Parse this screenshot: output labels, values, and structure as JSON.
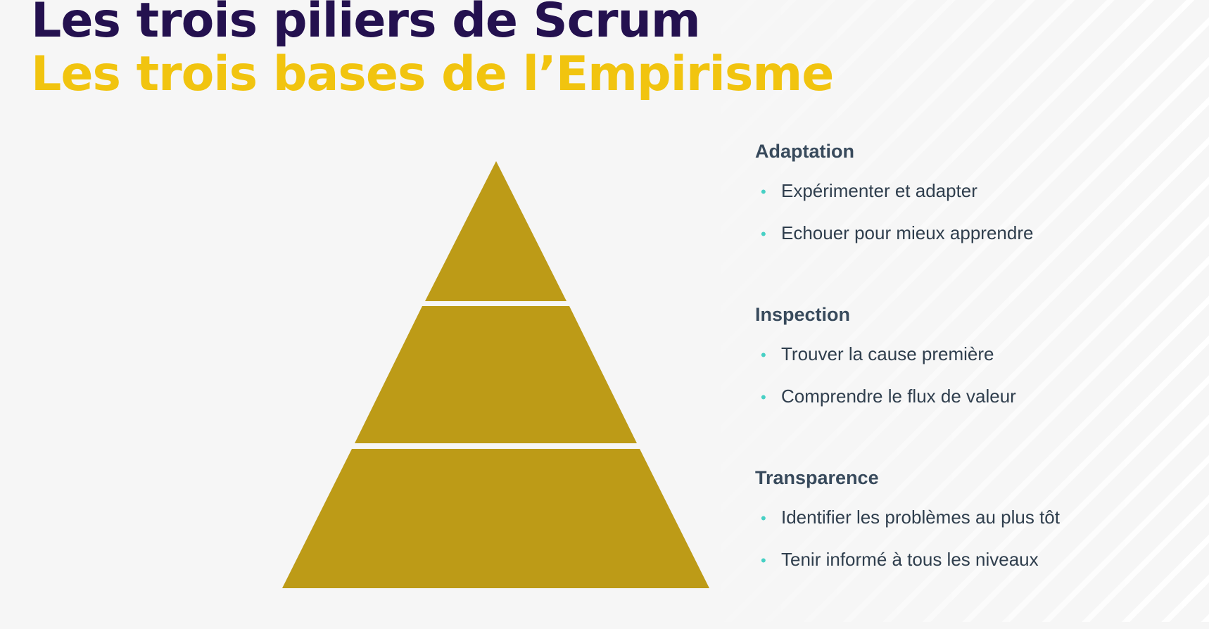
{
  "header": {
    "title": "Les trois piliers de Scrum",
    "subtitle": "Les trois bases de l’Empirisme"
  },
  "colors": {
    "title": "#24114f",
    "subtitle": "#f1c40f",
    "pyramid": "#bd9b17",
    "bullet": "#46d0c4",
    "text": "#384a5c"
  },
  "pillars": [
    {
      "heading": "Adaptation",
      "items": [
        "Expérimenter et adapter",
        "Echouer pour mieux apprendre"
      ]
    },
    {
      "heading": "Inspection",
      "items": [
        "Trouver la cause première",
        "Comprendre le flux de valeur"
      ]
    },
    {
      "heading": "Transparence",
      "items": [
        "Identifier les problèmes au plus tôt",
        "Tenir informé à tous les niveaux"
      ]
    }
  ],
  "bullet_glyph": "•",
  "icons": {
    "bullet": "dot-icon"
  }
}
